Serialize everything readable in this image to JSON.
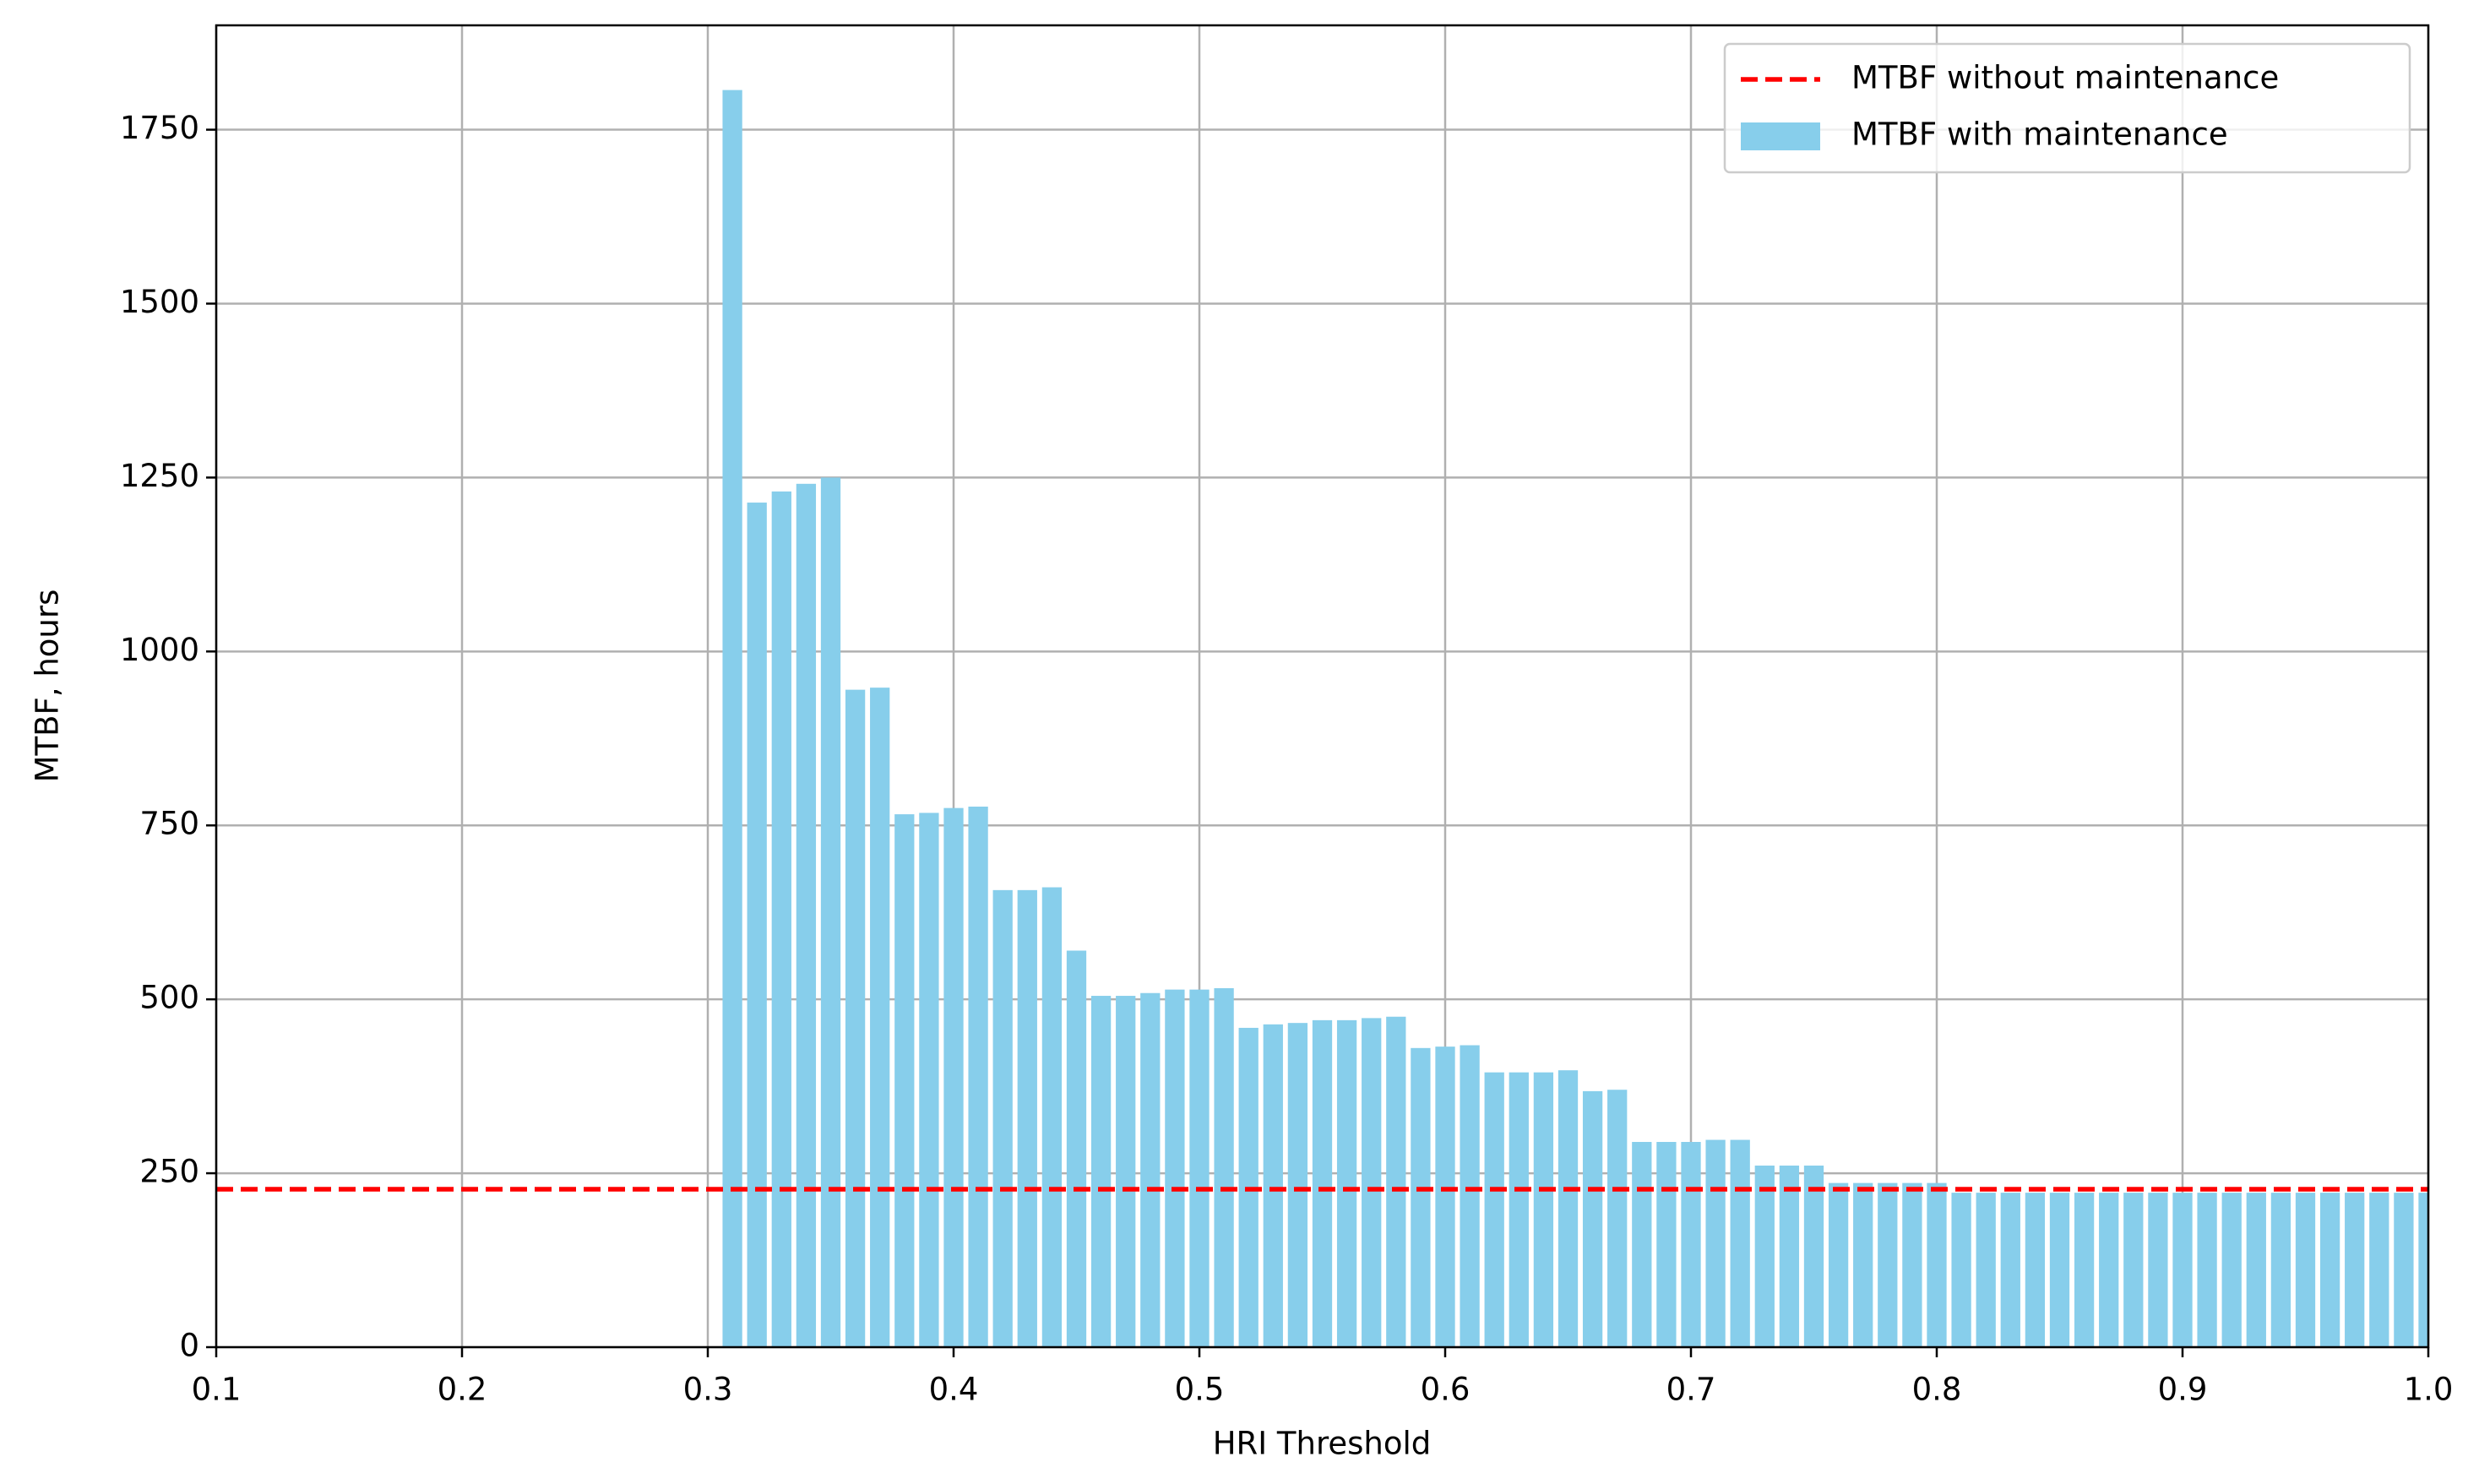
{
  "chart_data": {
    "type": "bar",
    "xlabel": "HRI Threshold",
    "ylabel": "MTBF, hours",
    "x": [
      0.31,
      0.32,
      0.33,
      0.34,
      0.35,
      0.36,
      0.37,
      0.38,
      0.39,
      0.4,
      0.41,
      0.42,
      0.43,
      0.44,
      0.45,
      0.46,
      0.47,
      0.48,
      0.49,
      0.5,
      0.51,
      0.52,
      0.53,
      0.54,
      0.55,
      0.56,
      0.57,
      0.58,
      0.59,
      0.6,
      0.61,
      0.62,
      0.63,
      0.64,
      0.65,
      0.66,
      0.67,
      0.68,
      0.69,
      0.7,
      0.71,
      0.72,
      0.73,
      0.74,
      0.75,
      0.76,
      0.77,
      0.78,
      0.79,
      0.8,
      0.81,
      0.82,
      0.83,
      0.84,
      0.85,
      0.86,
      0.87,
      0.88,
      0.89,
      0.9,
      0.91,
      0.92,
      0.93,
      0.94,
      0.95,
      0.96,
      0.97,
      0.98,
      0.99,
      1.0
    ],
    "series": [
      {
        "name": "MTBF with maintenance",
        "color": "#87ceeb",
        "values": [
          1807,
          1214,
          1230,
          1241,
          1250,
          945,
          948,
          766,
          768,
          775,
          777,
          657,
          657,
          661,
          570,
          505,
          505,
          509,
          514,
          514,
          516,
          459,
          464,
          466,
          470,
          470,
          473,
          475,
          430,
          432,
          434,
          395,
          395,
          395,
          398,
          368,
          370,
          295,
          295,
          295,
          298,
          298,
          261,
          261,
          261,
          236,
          236,
          236,
          236,
          236,
          222,
          222,
          222,
          222,
          222,
          222,
          222,
          222,
          222,
          222,
          222,
          222,
          222,
          222,
          222,
          222,
          222,
          222,
          222,
          222
        ]
      }
    ],
    "reference_line": {
      "name": "MTBF without maintenance",
      "color": "#ff0000",
      "value": 227
    },
    "xlim": [
      0.1,
      1.0
    ],
    "xticks": [
      0.1,
      0.2,
      0.3,
      0.4,
      0.5,
      0.6,
      0.7,
      0.8,
      0.9,
      {
        "value": 1.0,
        "label": "1.0"
      }
    ],
    "ylim": [
      0,
      1900
    ],
    "yticks": [
      0,
      250,
      500,
      750,
      1000,
      1250,
      1500,
      1750
    ],
    "grid": true,
    "legend": "upper right"
  }
}
